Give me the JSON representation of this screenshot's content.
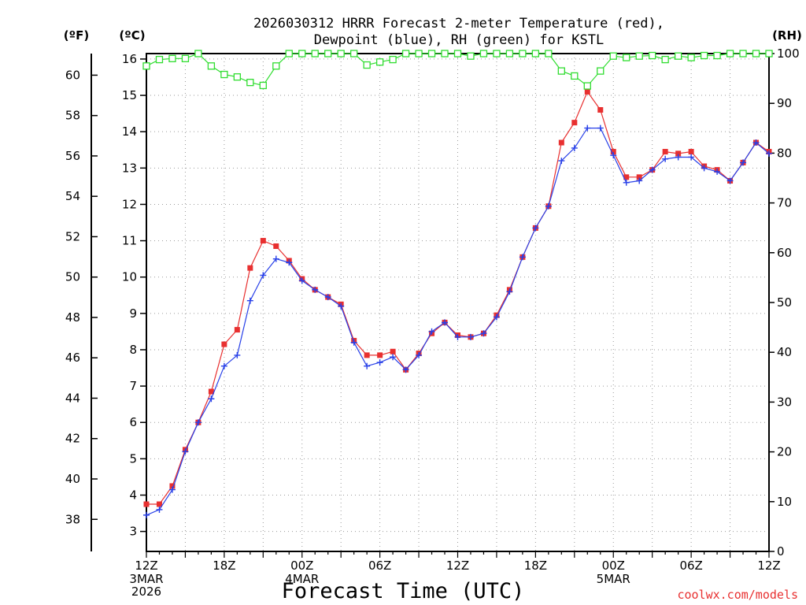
{
  "title_line1": "2026030312 HRRR Forecast 2-meter Temperature (red),",
  "title_line2": "Dewpoint (blue), RH (green) for KSTL",
  "unit_fahrenheit": "(ºF)",
  "unit_celsius": "(ºC)",
  "unit_rh": "(RH)",
  "xlabel": "Forecast Time (UTC)",
  "credit": "coolwx.com/models",
  "chart_data": {
    "type": "line",
    "title": "2026030312 HRRR Forecast 2-meter Temperature (red), Dewpoint (blue), RH (green) for KSTL",
    "xlabel": "Forecast Time (UTC)",
    "x_hours": [
      0,
      1,
      2,
      3,
      4,
      5,
      6,
      7,
      8,
      9,
      10,
      11,
      12,
      13,
      14,
      15,
      16,
      17,
      18,
      19,
      20,
      21,
      22,
      23,
      24,
      25,
      26,
      27,
      28,
      29,
      30,
      31,
      32,
      33,
      34,
      35,
      36,
      37,
      38,
      39,
      40,
      41,
      42,
      43,
      44,
      45,
      46,
      47,
      48
    ],
    "x_ticks": [
      {
        "hour": 0,
        "label": "12Z",
        "sub": [
          "3MAR",
          "2026"
        ]
      },
      {
        "hour": 6,
        "label": "18Z",
        "sub": []
      },
      {
        "hour": 12,
        "label": "00Z",
        "sub": [
          "4MAR"
        ]
      },
      {
        "hour": 18,
        "label": "06Z",
        "sub": []
      },
      {
        "hour": 24,
        "label": "12Z",
        "sub": []
      },
      {
        "hour": 30,
        "label": "18Z",
        "sub": []
      },
      {
        "hour": 36,
        "label": "00Z",
        "sub": [
          "5MAR"
        ]
      },
      {
        "hour": 42,
        "label": "06Z",
        "sub": []
      },
      {
        "hour": 48,
        "label": "12Z",
        "sub": []
      }
    ],
    "xlim": [
      0,
      48
    ],
    "y_celsius_ticks": [
      3,
      4,
      5,
      6,
      7,
      8,
      9,
      10,
      11,
      12,
      13,
      14,
      15,
      16
    ],
    "ylim_celsius": [
      2.45,
      16.15
    ],
    "y_fahrenheit_ticks": [
      38,
      40,
      42,
      44,
      46,
      48,
      50,
      52,
      54,
      56,
      58,
      60
    ],
    "y_rh_ticks": [
      0,
      10,
      20,
      30,
      40,
      50,
      60,
      70,
      80,
      90,
      100
    ],
    "ylim_rh": [
      0,
      100
    ],
    "series": [
      {
        "name": "Temperature (red)",
        "color": "#e83030",
        "marker": "filled-square",
        "axis": "celsius",
        "values": [
          3.75,
          3.75,
          4.25,
          5.25,
          6.0,
          6.85,
          8.15,
          8.55,
          10.25,
          11.0,
          10.85,
          10.45,
          9.95,
          9.65,
          9.45,
          9.25,
          8.25,
          7.85,
          7.85,
          7.95,
          7.45,
          7.9,
          8.45,
          8.75,
          8.4,
          8.35,
          8.45,
          8.95,
          9.65,
          10.55,
          11.35,
          11.95,
          13.7,
          14.25,
          15.1,
          14.6,
          13.45,
          12.75,
          12.75,
          12.95,
          13.45,
          13.4,
          13.45,
          13.05,
          12.95,
          12.65,
          13.15,
          13.7,
          13.45
        ]
      },
      {
        "name": "Dewpoint (blue)",
        "color": "#2840e8",
        "marker": "plus",
        "axis": "celsius",
        "values": [
          3.45,
          3.6,
          4.15,
          5.2,
          6.0,
          6.65,
          7.55,
          7.85,
          9.35,
          10.05,
          10.5,
          10.4,
          9.9,
          9.65,
          9.45,
          9.2,
          8.2,
          7.55,
          7.65,
          7.8,
          7.45,
          7.85,
          8.5,
          8.75,
          8.35,
          8.35,
          8.45,
          8.9,
          9.6,
          10.55,
          11.35,
          11.95,
          13.2,
          13.55,
          14.1,
          14.1,
          13.35,
          12.6,
          12.65,
          12.95,
          13.25,
          13.3,
          13.3,
          13.0,
          12.9,
          12.65,
          13.15,
          13.7,
          13.4
        ]
      },
      {
        "name": "RH (green)",
        "color": "#30dd30",
        "marker": "open-square",
        "axis": "rh",
        "values": [
          97.5,
          98.8,
          99.0,
          99.0,
          100,
          97.5,
          95.8,
          95.3,
          94.2,
          93.6,
          97.5,
          100,
          100,
          100,
          100,
          100,
          100,
          97.7,
          98.3,
          98.8,
          100,
          100,
          100,
          100,
          100,
          99.5,
          100,
          100,
          100,
          100,
          100,
          100,
          96.5,
          95.5,
          93.5,
          96.5,
          99.5,
          99.2,
          99.5,
          99.6,
          98.8,
          99.5,
          99.2,
          99.6,
          99.6,
          100,
          100,
          100,
          100
        ]
      }
    ]
  }
}
